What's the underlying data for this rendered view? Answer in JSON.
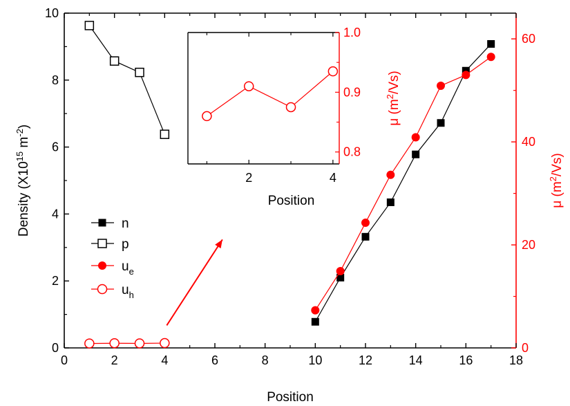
{
  "colors": {
    "axis": "#000000",
    "red": "#ff0000",
    "line_black": "#000000",
    "line_red": "#ff0000"
  },
  "chart_data": [
    {
      "type": "scatter",
      "role": "main",
      "xlabel": "Position",
      "ylabel_left": {
        "main": "Density (X10",
        "sup": "15",
        "unit": " m",
        "unit_sup": "-2",
        "close": ")"
      },
      "ylabel_right": {
        "main": "μ (m",
        "sup": "2",
        "unit": "/Vs)"
      },
      "xlim": [
        0,
        18
      ],
      "ylim_left": [
        0,
        10
      ],
      "ylim_right": [
        0,
        65
      ],
      "x_ticks": [
        0,
        2,
        4,
        6,
        8,
        10,
        12,
        14,
        16,
        18
      ],
      "x_ticks_text": [
        "0",
        "2",
        "4",
        "6",
        "8",
        "10",
        "12",
        "14",
        "16",
        "18"
      ],
      "y_ticks_left": [
        0,
        2,
        4,
        6,
        8,
        10
      ],
      "y_ticks_left_text": [
        "0",
        "2",
        "4",
        "6",
        "8",
        "10"
      ],
      "y_ticks_right": [
        0,
        20,
        40,
        60
      ],
      "y_ticks_right_text": [
        "0",
        "20",
        "40",
        "60"
      ],
      "legend_position": "left-middle",
      "series": [
        {
          "name": "n",
          "axis": "left",
          "marker": "square-filled",
          "color": "#000000",
          "x": [
            10,
            11,
            12,
            13,
            14,
            15,
            16,
            17
          ],
          "y": [
            0.78,
            2.1,
            3.32,
            4.35,
            5.78,
            6.72,
            8.28,
            9.08
          ]
        },
        {
          "name": "p",
          "axis": "left",
          "marker": "square-open",
          "color": "#000000",
          "x": [
            1,
            2,
            3,
            4
          ],
          "y": [
            9.63,
            8.57,
            8.23,
            6.38
          ]
        },
        {
          "name": "u",
          "sub": "e",
          "axis": "right",
          "marker": "circle-filled",
          "color": "#ff0000",
          "x": [
            10,
            11,
            12,
            13,
            14,
            15,
            16,
            17
          ],
          "y": [
            7.3,
            14.9,
            24.3,
            33.6,
            40.9,
            50.9,
            53.0,
            56.5
          ]
        },
        {
          "name": "u",
          "sub": "h",
          "axis": "right",
          "marker": "circle-open",
          "color": "#ff0000",
          "x": [
            1,
            2,
            3,
            4
          ],
          "y": [
            0.86,
            0.91,
            0.875,
            0.935
          ]
        }
      ],
      "annotation": {
        "type": "arrow",
        "from": [
          4,
          0.3
        ],
        "to": [
          6.3,
          4.6
        ],
        "color": "#ff0000"
      }
    },
    {
      "type": "line",
      "role": "inset",
      "xlabel": "Position",
      "ylabel": {
        "main": "μ (m",
        "sup": "2",
        "unit": "/Vs)"
      },
      "xlim": [
        0.55,
        4.15
      ],
      "ylim": [
        0.78,
        1.0
      ],
      "x_ticks": [
        2,
        4
      ],
      "x_ticks_text": [
        "2",
        "4"
      ],
      "y_ticks": [
        0.8,
        0.9,
        1.0
      ],
      "y_ticks_text": [
        "0.8",
        "0.9",
        "1.0"
      ],
      "series": [
        {
          "marker": "circle-open",
          "color": "#ff0000",
          "x": [
            1,
            2,
            3,
            4
          ],
          "y": [
            0.86,
            0.91,
            0.875,
            0.935
          ]
        }
      ]
    }
  ]
}
